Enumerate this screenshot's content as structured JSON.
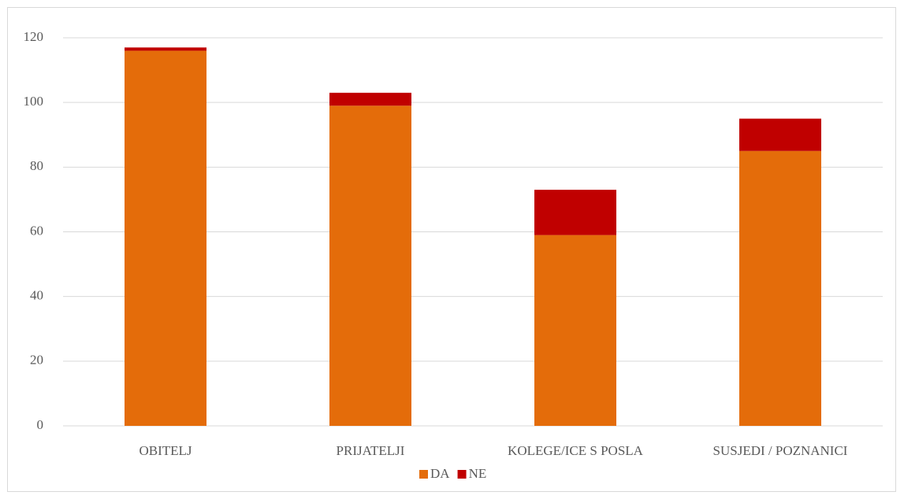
{
  "chart_data": {
    "type": "stacked_bar",
    "categories": [
      "OBITELJ",
      "PRIJATELJI",
      "KOLEGE/ICE S POSLA",
      "SUSJEDI / POZNANICI"
    ],
    "series": [
      {
        "name": "DA",
        "color": "#e46c0a",
        "values": [
          116,
          99,
          59,
          85
        ]
      },
      {
        "name": "NE",
        "color": "#c00000",
        "values": [
          1,
          4,
          14,
          10
        ]
      }
    ],
    "ylim": [
      0,
      120
    ],
    "yticks": [
      0,
      20,
      40,
      60,
      80,
      100,
      120
    ],
    "grid": true,
    "legend": "bottom"
  }
}
